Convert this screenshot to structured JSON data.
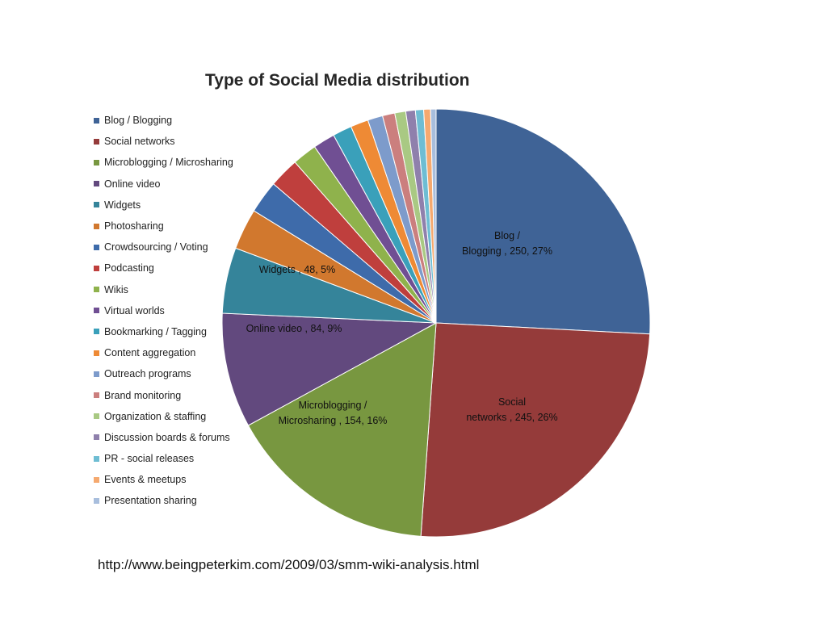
{
  "chart_data": {
    "type": "pie",
    "title": "Type of Social Media distribution",
    "legend_position": "left",
    "slices": [
      {
        "name": "Blog / Blogging",
        "value": 250,
        "percent": "27%",
        "color": "#3F6396",
        "label_lines": [
          "Blog /",
          "Blogging , 250, 27%"
        ]
      },
      {
        "name": "Social networks",
        "value": 245,
        "percent": "26%",
        "color": "#953B3A",
        "label_lines": [
          "Social",
          "networks , 245, 26%"
        ]
      },
      {
        "name": "Microblogging  / Microsharing",
        "value": 154,
        "percent": "16%",
        "color": "#789740",
        "label_lines": [
          "Microblogging /",
          "Microsharing , 154, 16%"
        ]
      },
      {
        "name": "Online video",
        "value": 84,
        "percent": "9%",
        "color": "#62497E",
        "label_lines": [
          "Online video , 84, 9%"
        ]
      },
      {
        "name": "Widgets",
        "value": 48,
        "percent": "5%",
        "color": "#35849A",
        "label_lines": [
          "Widgets , 48, 5%"
        ]
      },
      {
        "name": "Photosharing",
        "value": 30,
        "color": "#D1782E"
      },
      {
        "name": "Crowdsourcing  / Voting",
        "value": 24,
        "color": "#3E6BAA"
      },
      {
        "name": "Podcasting",
        "value": 22,
        "color": "#BF3F3D"
      },
      {
        "name": "Wikis",
        "value": 18,
        "color": "#8FB24C"
      },
      {
        "name": "Virtual worlds",
        "value": 16,
        "color": "#704F93"
      },
      {
        "name": "Bookmarking / Tagging",
        "value": 14,
        "color": "#3AA0BA"
      },
      {
        "name": "Content aggregation",
        "value": 13,
        "color": "#EE8A35"
      },
      {
        "name": "Outreach programs",
        "value": 11,
        "color": "#7D9BCB"
      },
      {
        "name": "Brand monitoring",
        "value": 9,
        "color": "#CB7F7E"
      },
      {
        "name": "Organization  & staffing",
        "value": 8,
        "color": "#A9C983"
      },
      {
        "name": "Discussion boards  & forums",
        "value": 7,
        "color": "#8F80AC"
      },
      {
        "name": "PR - social releases",
        "value": 6,
        "color": "#6EBDD3"
      },
      {
        "name": "Events & meetups",
        "value": 5,
        "color": "#F5A96F"
      },
      {
        "name": "Presentation sharing",
        "value": 4,
        "color": "#A8BEDD"
      }
    ]
  },
  "source_url": "http://www.beingpeterkim.com/2009/03/smm-wiki-analysis.html"
}
